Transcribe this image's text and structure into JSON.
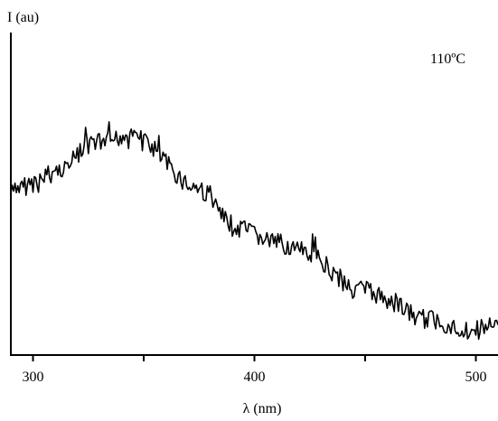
{
  "chart_data": {
    "type": "line",
    "ylabel": "I (au)",
    "xlabel": "λ (nm)",
    "annotation": "110ºC",
    "xlim": [
      290,
      510
    ],
    "ylim": [
      0,
      1
    ],
    "xticks": [
      {
        "value": 300,
        "label": "300"
      },
      {
        "value": 350,
        "label": ""
      },
      {
        "value": 400,
        "label": "400"
      },
      {
        "value": 450,
        "label": ""
      },
      {
        "value": 500,
        "label": "500"
      }
    ],
    "grid": false,
    "series": [
      {
        "color": "#000000",
        "x": [
          290,
          295,
          300,
          305,
          310,
          315,
          320,
          325,
          330,
          335,
          340,
          345,
          350,
          355,
          360,
          365,
          370,
          375,
          380,
          385,
          390,
          395,
          400,
          405,
          410,
          415,
          420,
          425,
          430,
          435,
          440,
          445,
          450,
          455,
          460,
          465,
          470,
          475,
          480,
          485,
          490,
          495,
          500,
          505,
          510
        ],
        "y": [
          0.59,
          0.61,
          0.63,
          0.65,
          0.67,
          0.69,
          0.73,
          0.76,
          0.78,
          0.78,
          0.8,
          0.82,
          0.79,
          0.75,
          0.7,
          0.66,
          0.62,
          0.61,
          0.58,
          0.51,
          0.47,
          0.46,
          0.44,
          0.42,
          0.41,
          0.4,
          0.38,
          0.37,
          0.35,
          0.3,
          0.27,
          0.25,
          0.24,
          0.22,
          0.2,
          0.19,
          0.15,
          0.13,
          0.13,
          0.12,
          0.1,
          0.09,
          0.09,
          0.1,
          0.11
        ]
      }
    ]
  }
}
